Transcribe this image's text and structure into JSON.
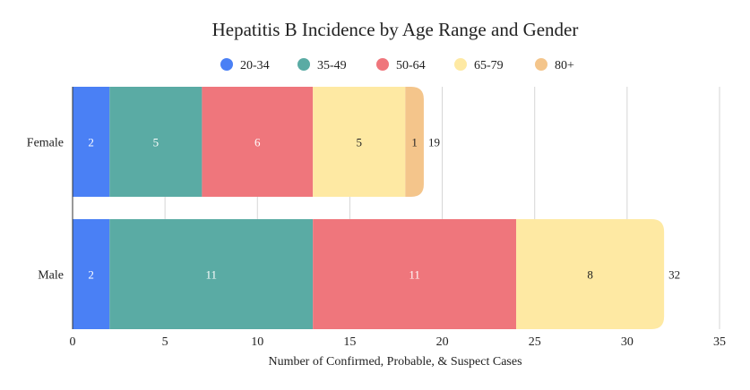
{
  "chart_data": {
    "type": "bar",
    "orientation": "horizontal",
    "stacked": true,
    "title": "Hepatitis B Incidence by Age Range and Gender",
    "xlabel": "Number of Confirmed, Probable, & Suspect Cases",
    "ylabel": "",
    "xlim": [
      0,
      35
    ],
    "xticks": [
      0,
      5,
      10,
      15,
      20,
      25,
      30,
      35
    ],
    "grid": true,
    "legend_position": "top",
    "categories": [
      "Female",
      "Male"
    ],
    "totals": [
      19,
      32
    ],
    "series": [
      {
        "name": "20-34",
        "color": "#4a80f5",
        "values": [
          2,
          2
        ]
      },
      {
        "name": "35-49",
        "color": "#5aaba4",
        "values": [
          5,
          11
        ]
      },
      {
        "name": "50-64",
        "color": "#ef767c",
        "values": [
          6,
          11
        ]
      },
      {
        "name": "65-79",
        "color": "#fee9a3",
        "values": [
          5,
          8
        ]
      },
      {
        "name": "80+",
        "color": "#f4c58b",
        "values": [
          1,
          0
        ]
      }
    ]
  }
}
